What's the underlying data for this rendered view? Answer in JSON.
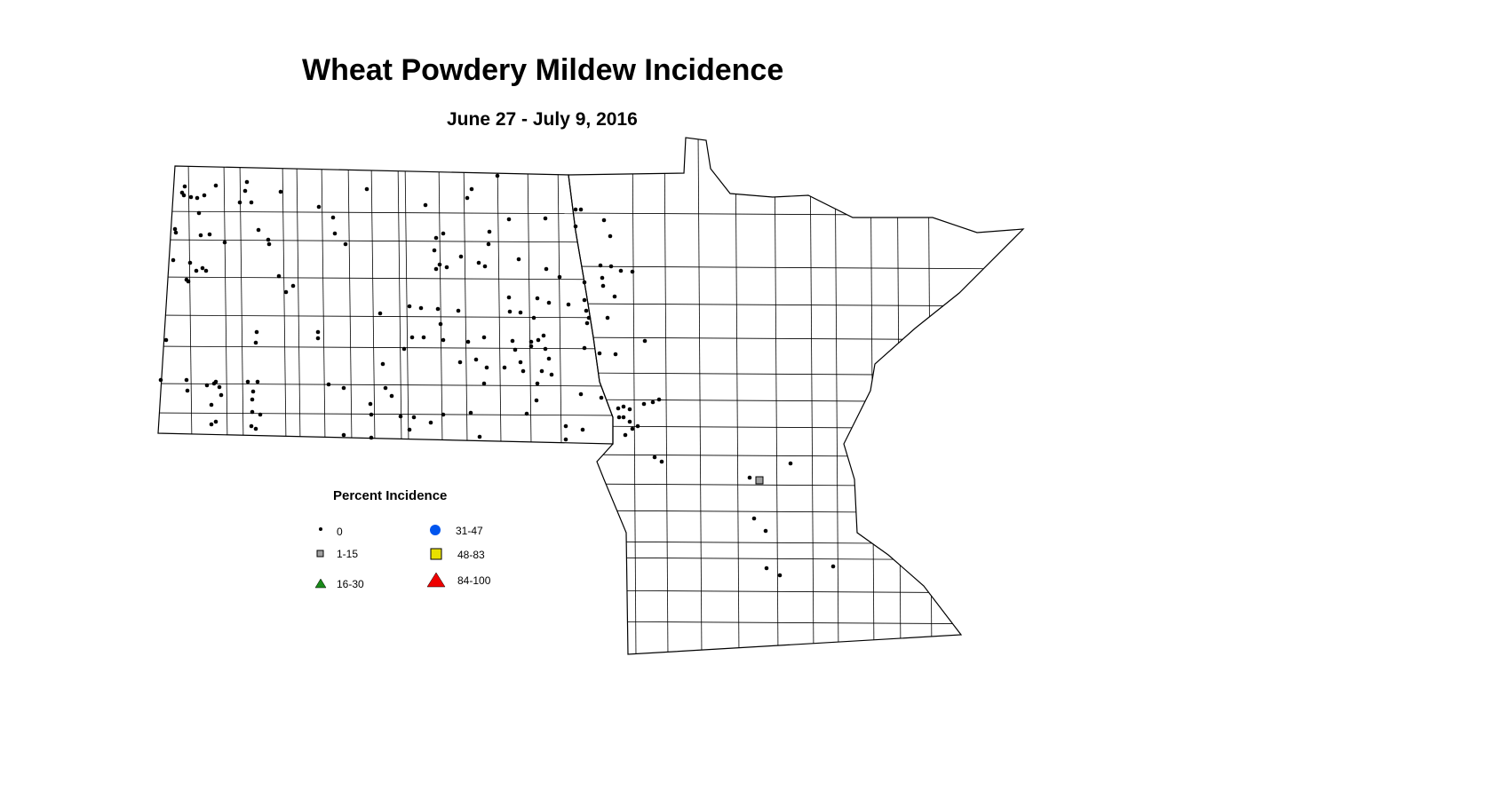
{
  "title": "Wheat Powdery Mildew Incidence",
  "subtitle": "June 27 - July 9, 2016",
  "legend": {
    "title": "Percent Incidence",
    "classes": [
      {
        "label": "0",
        "symbol": "dot",
        "color": "#000000"
      },
      {
        "label": "1-15",
        "symbol": "square",
        "color": "#a0a0a0"
      },
      {
        "label": "16-30",
        "symbol": "triangle",
        "color": "#1a8a1a"
      },
      {
        "label": "31-47",
        "symbol": "circle",
        "color": "#0055ee"
      },
      {
        "label": "48-83",
        "symbol": "square",
        "color": "#e8e000"
      },
      {
        "label": "84-100",
        "symbol": "triangle",
        "color": "#ee0000"
      }
    ]
  },
  "map": {
    "regions": [
      "North Dakota",
      "Minnesota"
    ],
    "boundaries": "county",
    "observed_classes": {
      "0": "majority of sites",
      "1-15": "1 site"
    }
  }
}
